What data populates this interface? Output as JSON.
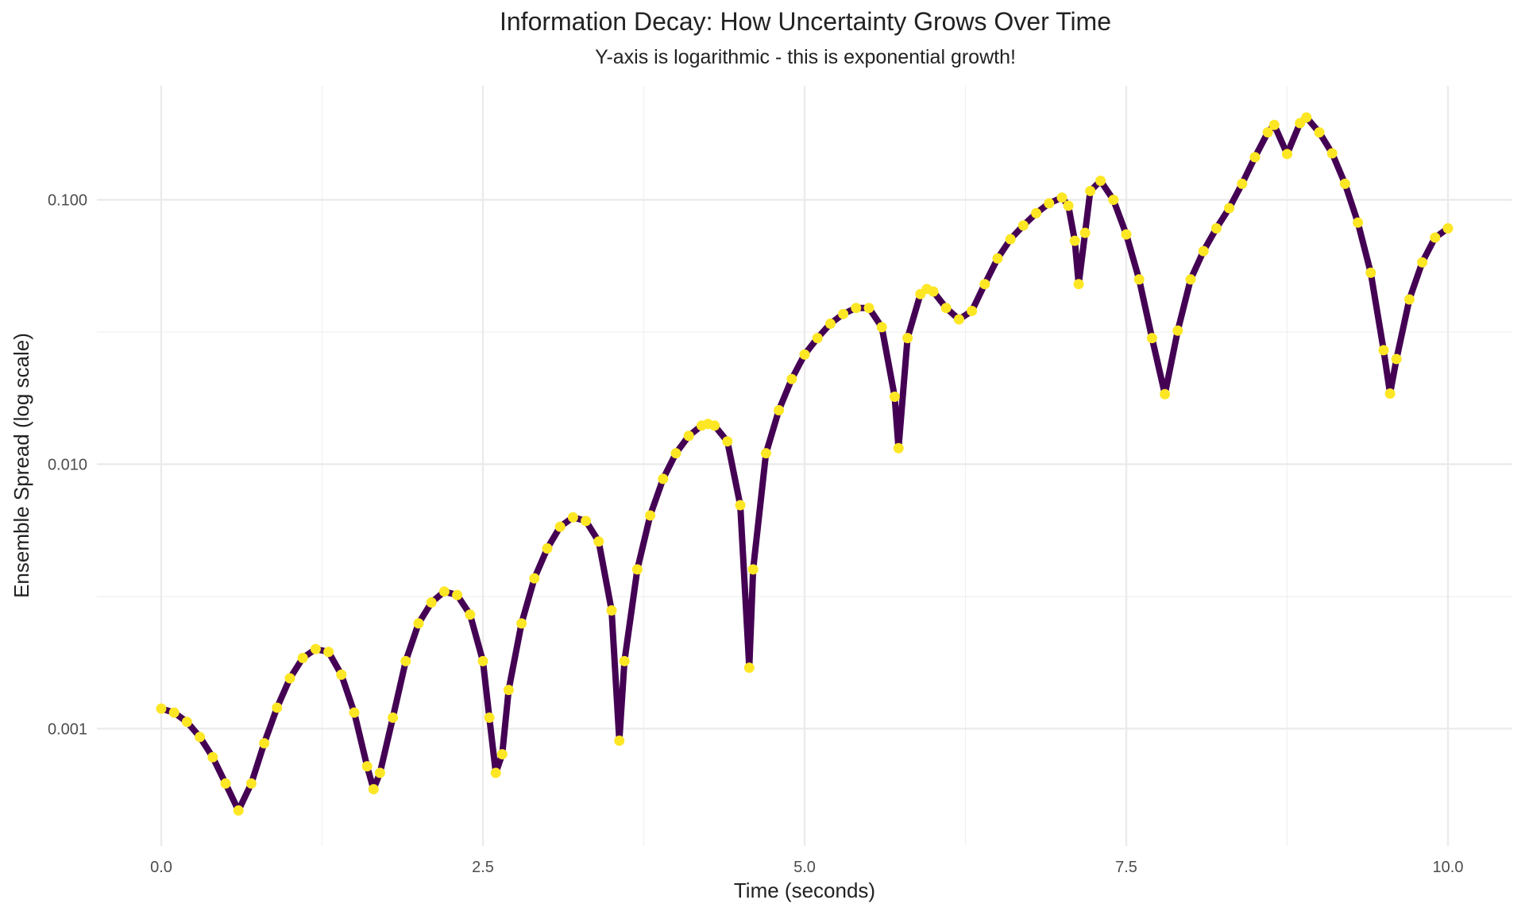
{
  "chart_data": {
    "type": "line",
    "title": "Information Decay: How Uncertainty Grows Over Time",
    "subtitle": "Y-axis is logarithmic - this is exponential growth!",
    "xlabel": "Time (seconds)",
    "ylabel": "Ensemble Spread (log scale)",
    "x": [
      0,
      0.1,
      0.2,
      0.3,
      0.4,
      0.5,
      0.6,
      0.7,
      0.8,
      0.9,
      1.0,
      1.1,
      1.2,
      1.3,
      1.4,
      1.5,
      1.6,
      1.65,
      1.7,
      1.8,
      1.9,
      2.0,
      2.1,
      2.2,
      2.3,
      2.4,
      2.5,
      2.55,
      2.6,
      2.65,
      2.7,
      2.8,
      2.9,
      3.0,
      3.1,
      3.2,
      3.3,
      3.4,
      3.5,
      3.56,
      3.6,
      3.7,
      3.8,
      3.9,
      4.0,
      4.1,
      4.2,
      4.25,
      4.3,
      4.4,
      4.5,
      4.57,
      4.6,
      4.7,
      4.8,
      4.9,
      5.0,
      5.1,
      5.2,
      5.3,
      5.4,
      5.5,
      5.6,
      5.7,
      5.73,
      5.8,
      5.9,
      5.95,
      6.0,
      6.1,
      6.2,
      6.3,
      6.4,
      6.5,
      6.6,
      6.7,
      6.8,
      6.9,
      7.0,
      7.05,
      7.1,
      7.13,
      7.18,
      7.22,
      7.3,
      7.4,
      7.5,
      7.6,
      7.7,
      7.8,
      7.9,
      8.0,
      8.1,
      8.2,
      8.3,
      8.4,
      8.5,
      8.6,
      8.65,
      8.75,
      8.85,
      8.9,
      9.0,
      9.1,
      9.2,
      9.3,
      9.4,
      9.5,
      9.55,
      9.6,
      9.7,
      9.8,
      9.9,
      10.0
    ],
    "series": [
      {
        "color": "#440154",
        "point_color": "#fde725",
        "values": [
          0.00119,
          0.00115,
          0.00106,
          0.00093,
          0.00078,
          0.00062,
          0.00049,
          0.00062,
          0.00088,
          0.0012,
          0.00155,
          0.00185,
          0.002,
          0.00195,
          0.0016,
          0.00115,
          0.00072,
          0.00059,
          0.00068,
          0.0011,
          0.0018,
          0.0025,
          0.003,
          0.0033,
          0.0032,
          0.0027,
          0.0018,
          0.0011,
          0.00068,
          0.0008,
          0.0014,
          0.0025,
          0.0037,
          0.0048,
          0.0058,
          0.0063,
          0.0061,
          0.0051,
          0.0028,
          0.0009,
          0.0018,
          0.004,
          0.0064,
          0.0088,
          0.011,
          0.0128,
          0.014,
          0.0142,
          0.014,
          0.0122,
          0.007,
          0.0017,
          0.004,
          0.011,
          0.016,
          0.021,
          0.026,
          0.03,
          0.034,
          0.037,
          0.039,
          0.039,
          0.033,
          0.018,
          0.0115,
          0.03,
          0.044,
          0.046,
          0.045,
          0.039,
          0.0353,
          0.038,
          0.048,
          0.06,
          0.071,
          0.08,
          0.089,
          0.097,
          0.102,
          0.095,
          0.07,
          0.048,
          0.075,
          0.108,
          0.118,
          0.1,
          0.074,
          0.05,
          0.03,
          0.0184,
          0.032,
          0.05,
          0.064,
          0.078,
          0.093,
          0.115,
          0.145,
          0.18,
          0.192,
          0.149,
          0.195,
          0.205,
          0.18,
          0.15,
          0.115,
          0.082,
          0.053,
          0.027,
          0.0185,
          0.025,
          0.042,
          0.058,
          0.072,
          0.078
        ]
      }
    ],
    "xlim": [
      -0.5,
      10.5
    ],
    "xticks": [
      {
        "value": 0,
        "label": "0.0"
      },
      2.5,
      {
        "value": 5,
        "label": "5.0"
      },
      7.5,
      {
        "value": 10,
        "label": "10.0"
      }
    ],
    "xminor": [
      1.25,
      3.75,
      6.25,
      8.75
    ],
    "ylim": [
      0.00036,
      0.27
    ],
    "log_y": true,
    "yticks": [
      0.001,
      {
        "value": 0.01,
        "label": "0.010"
      },
      {
        "value": 0.1,
        "label": "0.100"
      }
    ],
    "yminor": [
      0.00316,
      0.0316
    ],
    "grid": true
  }
}
